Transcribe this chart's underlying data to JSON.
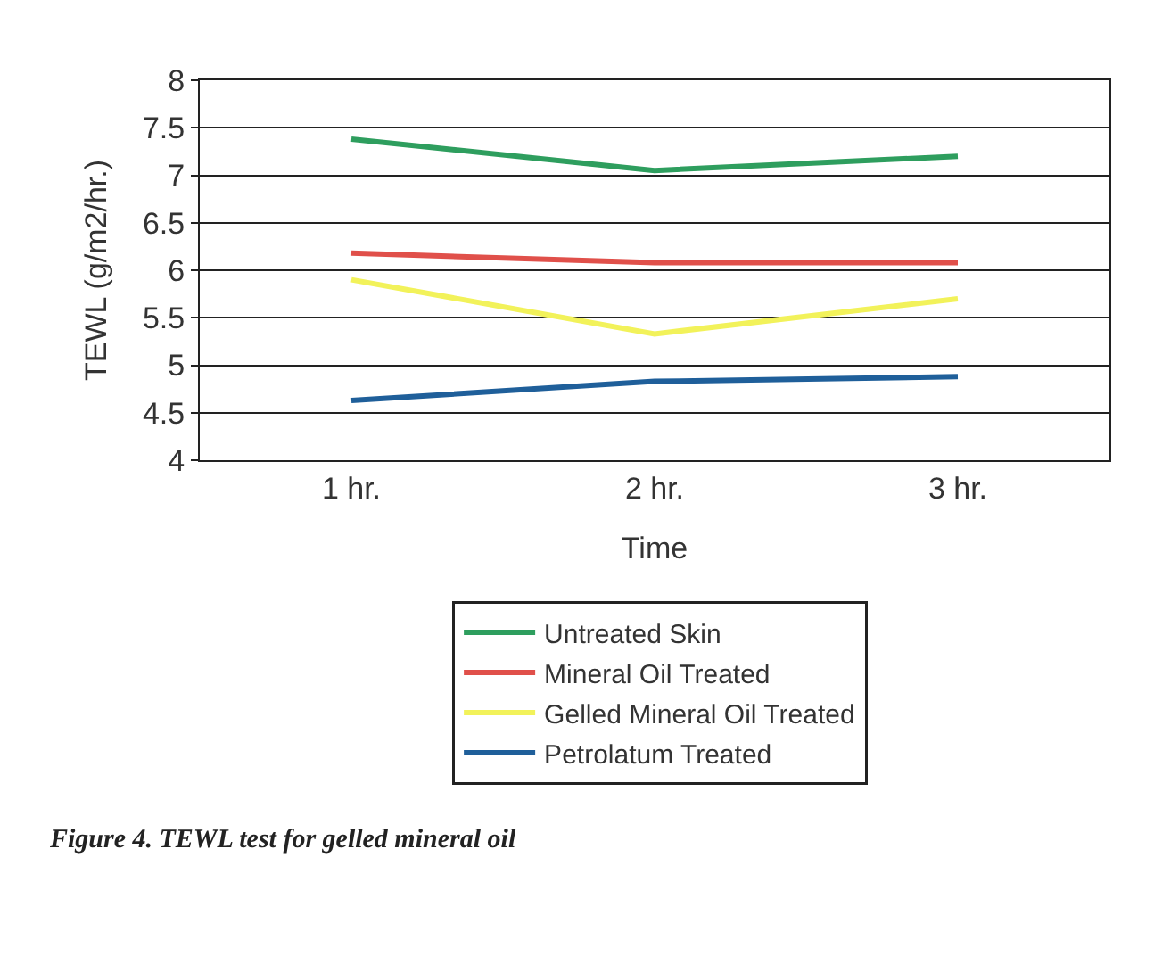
{
  "chart_data": {
    "type": "line",
    "xlabel": "Time",
    "ylabel": "TEWL (g/m2/hr.)",
    "categories": [
      "1 hr.",
      "2 hr.",
      "3 hr."
    ],
    "series": [
      {
        "name": "Untreated Skin",
        "color": "#2e9e5e",
        "values": [
          7.38,
          7.05,
          7.2
        ]
      },
      {
        "name": "Mineral Oil Treated",
        "color": "#e0504a",
        "values": [
          6.18,
          6.08,
          6.08
        ]
      },
      {
        "name": "Gelled Mineral Oil Treated",
        "color": "#f2f25a",
        "values": [
          5.9,
          5.33,
          5.7
        ]
      },
      {
        "name": "Petrolatum Treated",
        "color": "#1f5f9a",
        "values": [
          4.63,
          4.83,
          4.88
        ]
      }
    ],
    "ylim": [
      4,
      8
    ],
    "yticks": [
      4,
      4.5,
      5,
      5.5,
      6,
      6.5,
      7,
      7.5,
      8
    ],
    "grid": "y",
    "legend": "bottom",
    "marker": "none",
    "line_style": "solid",
    "annotations": [
      "Figure 4. TEWL test for gelled mineral oil"
    ]
  }
}
